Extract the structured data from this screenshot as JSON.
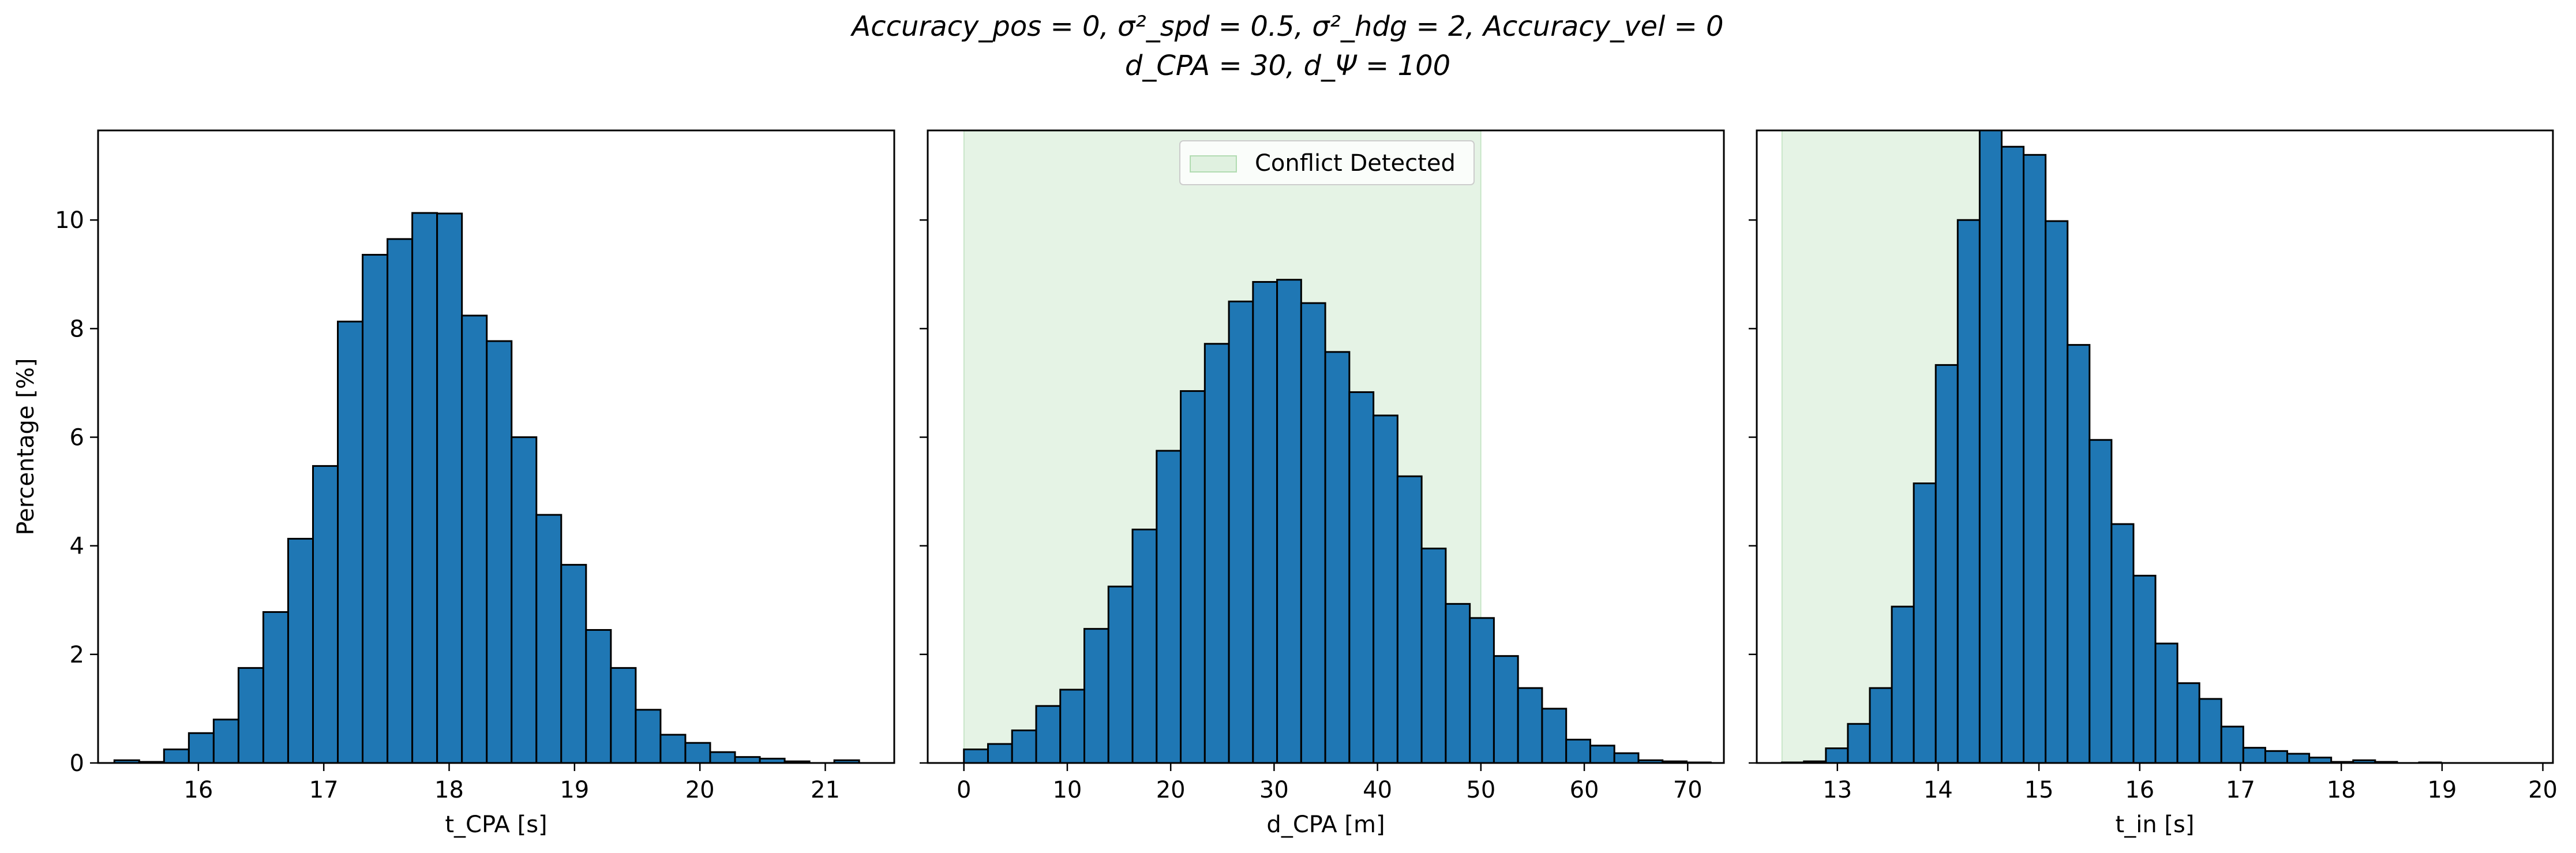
{
  "figure": {
    "title_line1": "Accuracy_pos = 0, σ²_spd = 0.5, σ²_hdg = 2, Accuracy_vel = 0",
    "title_line2": "d_CPA = 30, d_Ψ = 100"
  },
  "colors": {
    "bar_fill": "#1f77b4",
    "bar_edge": "#000000",
    "conflict_region": "#2ca02c"
  },
  "chart_data": [
    {
      "type": "bar",
      "xlabel": "t_CPA [s]",
      "ylabel": "Percentage [%]",
      "xlim": [
        15.2,
        21.55
      ],
      "ylim": [
        0,
        11.65
      ],
      "xticks": [
        16,
        17,
        18,
        19,
        20,
        21
      ],
      "yticks": [
        0,
        2,
        4,
        6,
        8,
        10
      ],
      "bin_start": 15.33,
      "bin_width": 0.198,
      "values": [
        0.05,
        0.02,
        0.25,
        0.55,
        0.8,
        1.75,
        2.78,
        4.13,
        5.47,
        8.13,
        9.36,
        9.65,
        10.13,
        10.12,
        8.24,
        7.77,
        6.0,
        4.57,
        3.65,
        2.45,
        1.75,
        0.98,
        0.52,
        0.37,
        0.2,
        0.11,
        0.08,
        0.03,
        0.0,
        0.05
      ],
      "shaded_region": null,
      "legend": null
    },
    {
      "type": "bar",
      "xlabel": "d_CPA [m]",
      "ylabel": "",
      "xlim": [
        -3.5,
        73.5
      ],
      "ylim": [
        0,
        11.65
      ],
      "xticks": [
        0,
        10,
        20,
        30,
        40,
        50,
        60,
        70
      ],
      "yticks": [
        0,
        2,
        4,
        6,
        8,
        10
      ],
      "bin_start": 0,
      "bin_width": 2.33,
      "values": [
        0.25,
        0.35,
        0.6,
        1.05,
        1.35,
        2.47,
        3.25,
        4.3,
        5.75,
        6.85,
        7.72,
        8.5,
        8.86,
        8.9,
        8.47,
        7.57,
        6.83,
        6.4,
        5.28,
        3.95,
        2.93,
        2.67,
        1.97,
        1.38,
        1.0,
        0.43,
        0.32,
        0.18,
        0.05,
        0.03,
        0.01
      ],
      "shaded_region": [
        0,
        50
      ],
      "legend": {
        "label": "Conflict Detected",
        "placement": "upper center"
      }
    },
    {
      "type": "bar",
      "xlabel": "t_in [s]",
      "ylabel": "",
      "xlim": [
        12.2,
        20.1
      ],
      "ylim": [
        0,
        11.65
      ],
      "xticks": [
        13,
        14,
        15,
        16,
        17,
        18,
        19,
        20
      ],
      "yticks": [
        0,
        2,
        4,
        6,
        8,
        10
      ],
      "bin_start": 12.45,
      "bin_width": 0.218,
      "values": [
        0.01,
        0.03,
        0.27,
        0.72,
        1.38,
        2.88,
        5.15,
        7.33,
        10.0,
        11.8,
        11.35,
        11.2,
        9.98,
        7.7,
        5.95,
        4.4,
        3.45,
        2.2,
        1.47,
        1.18,
        0.67,
        0.28,
        0.22,
        0.17,
        0.1,
        0.02,
        0.05,
        0.02,
        0.0,
        0.01
      ],
      "shaded_region": [
        12.45,
        14.55
      ],
      "legend": null
    }
  ]
}
